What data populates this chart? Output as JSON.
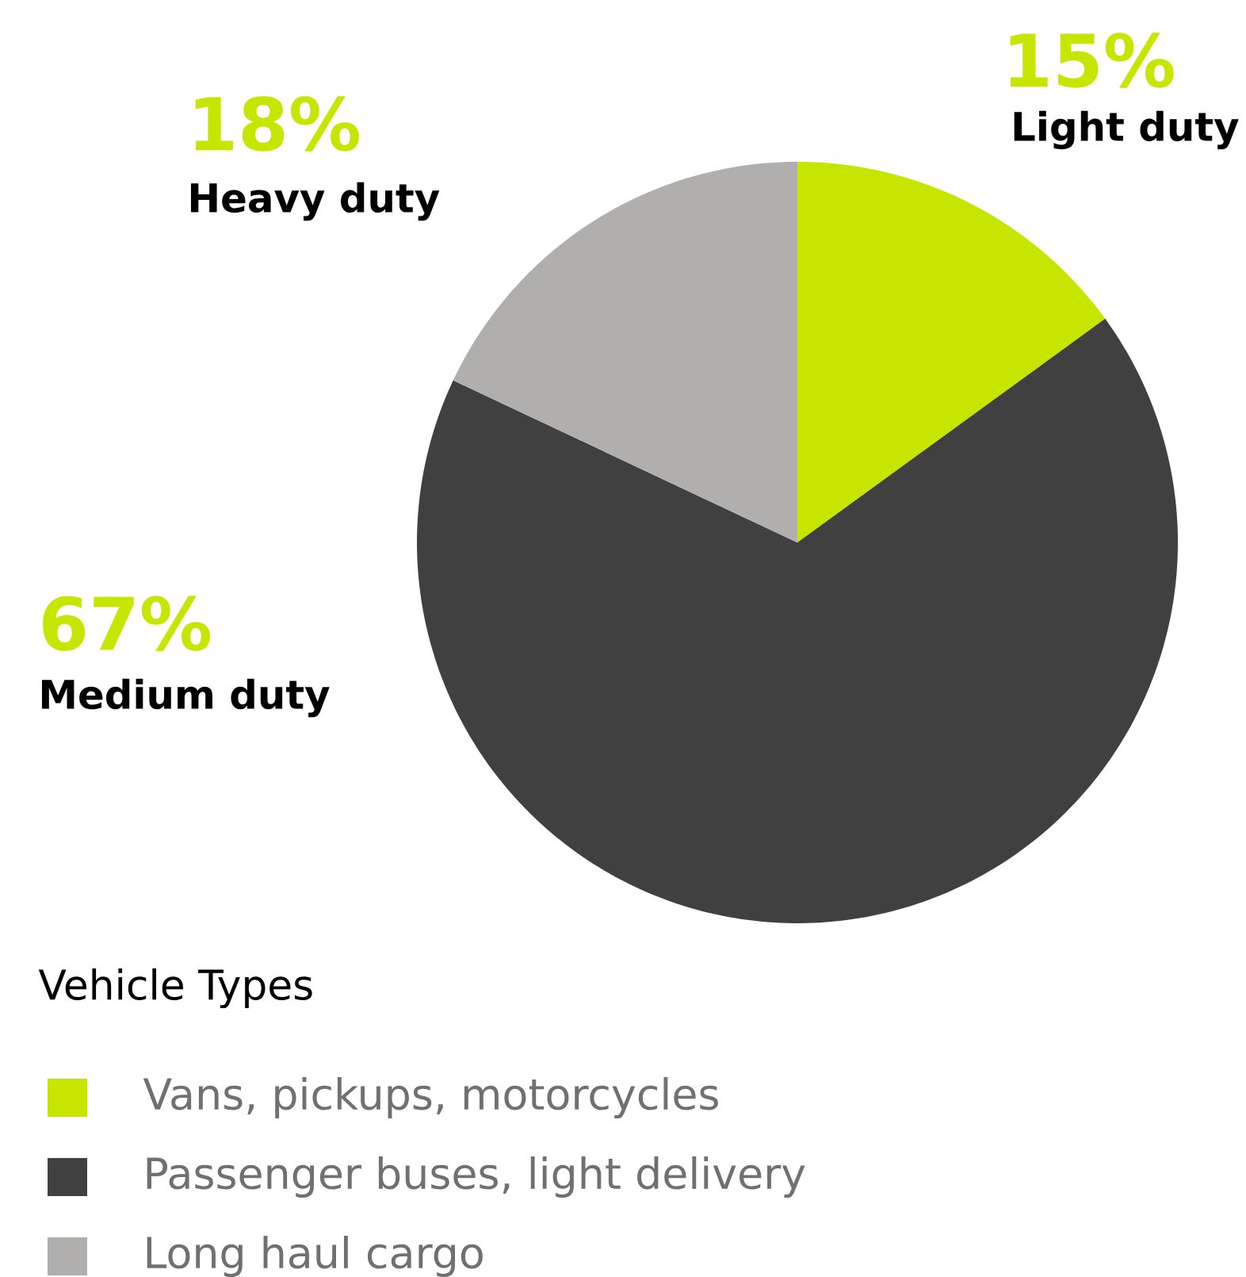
{
  "chart_data": {
    "type": "pie",
    "categories": [
      "Light duty",
      "Medium duty",
      "Heavy duty"
    ],
    "values": [
      15,
      67,
      18
    ],
    "colors": [
      "#c6e600",
      "#404040",
      "#b0afad"
    ],
    "value_labels": [
      "15%",
      "67%",
      "18%"
    ],
    "legend_title": "Vehicle Types",
    "annotations": [
      "Vans, pickups, motorcycles",
      "Passenger buses, light delivery",
      "Long haul cargo"
    ]
  }
}
